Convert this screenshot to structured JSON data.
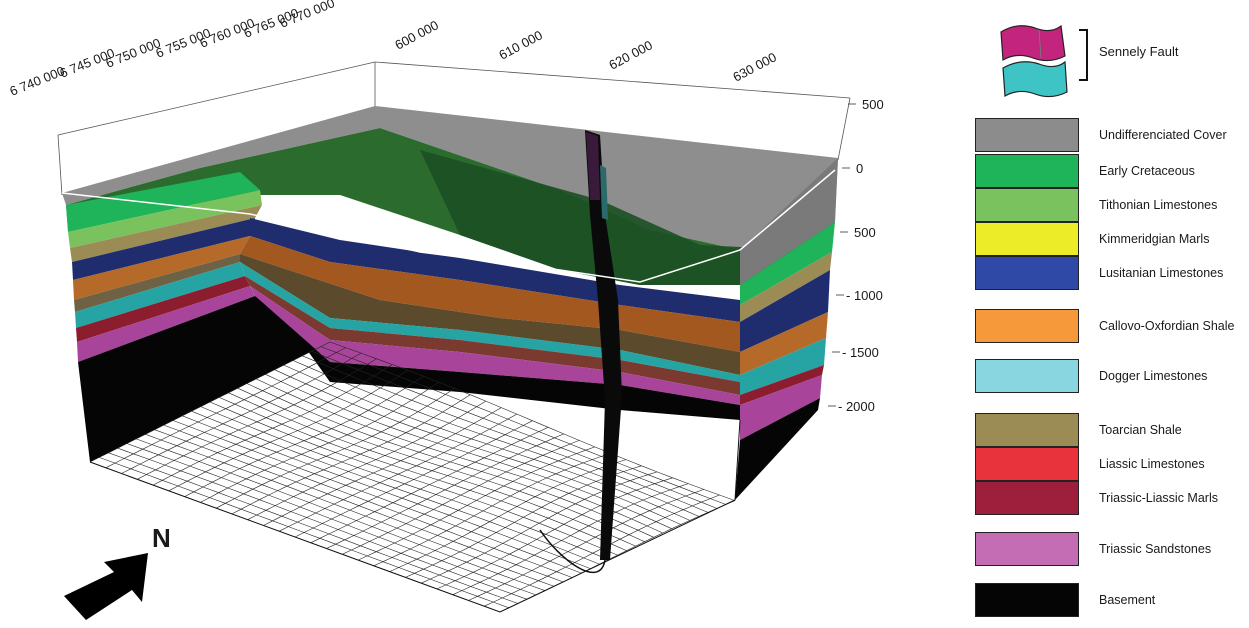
{
  "coordinates": {
    "northing": [
      "6 740 000",
      "6 745 000",
      "6 750 000",
      "6 755 000",
      "6 760 000",
      "6 765 000",
      "6 770 000"
    ],
    "easting": [
      "600 000",
      "610 000",
      "620 000",
      "630 000"
    ],
    "depth": [
      "500",
      "0",
      "500",
      "- 1000",
      "- 1500",
      "- 2000"
    ]
  },
  "north_arrow": {
    "label": "N"
  },
  "legend": {
    "fault": {
      "label": "Sennely Fault",
      "colors": [
        "#c2247e",
        "#3ec4c4"
      ]
    },
    "units": [
      {
        "label": "Undifferenciated Cover",
        "color": "#8c8c8c"
      },
      {
        "label": "Early Cretaceous",
        "color": "#1fb35a"
      },
      {
        "label": "Tithonian Limestones",
        "color": "#7ac25e"
      },
      {
        "label": "Kimmeridgian Marls",
        "color": "#ecec28"
      },
      {
        "label": "Lusitanian Limestones",
        "color": "#2e4aa6"
      },
      {
        "label": "Callovo-Oxfordian Shale",
        "color": "#f5993a"
      },
      {
        "label": "Dogger Limestones",
        "color": "#8ad6e0"
      },
      {
        "label": "Toarcian Shale",
        "color": "#9b8c56"
      },
      {
        "label": "Liassic Limestones",
        "color": "#e8333c"
      },
      {
        "label": "Triassic-Liassic Marls",
        "color": "#9e1f3c"
      },
      {
        "label": "Triassic Sandstones",
        "color": "#c46cb4"
      },
      {
        "label": "Basement",
        "color": "#050505"
      }
    ]
  }
}
